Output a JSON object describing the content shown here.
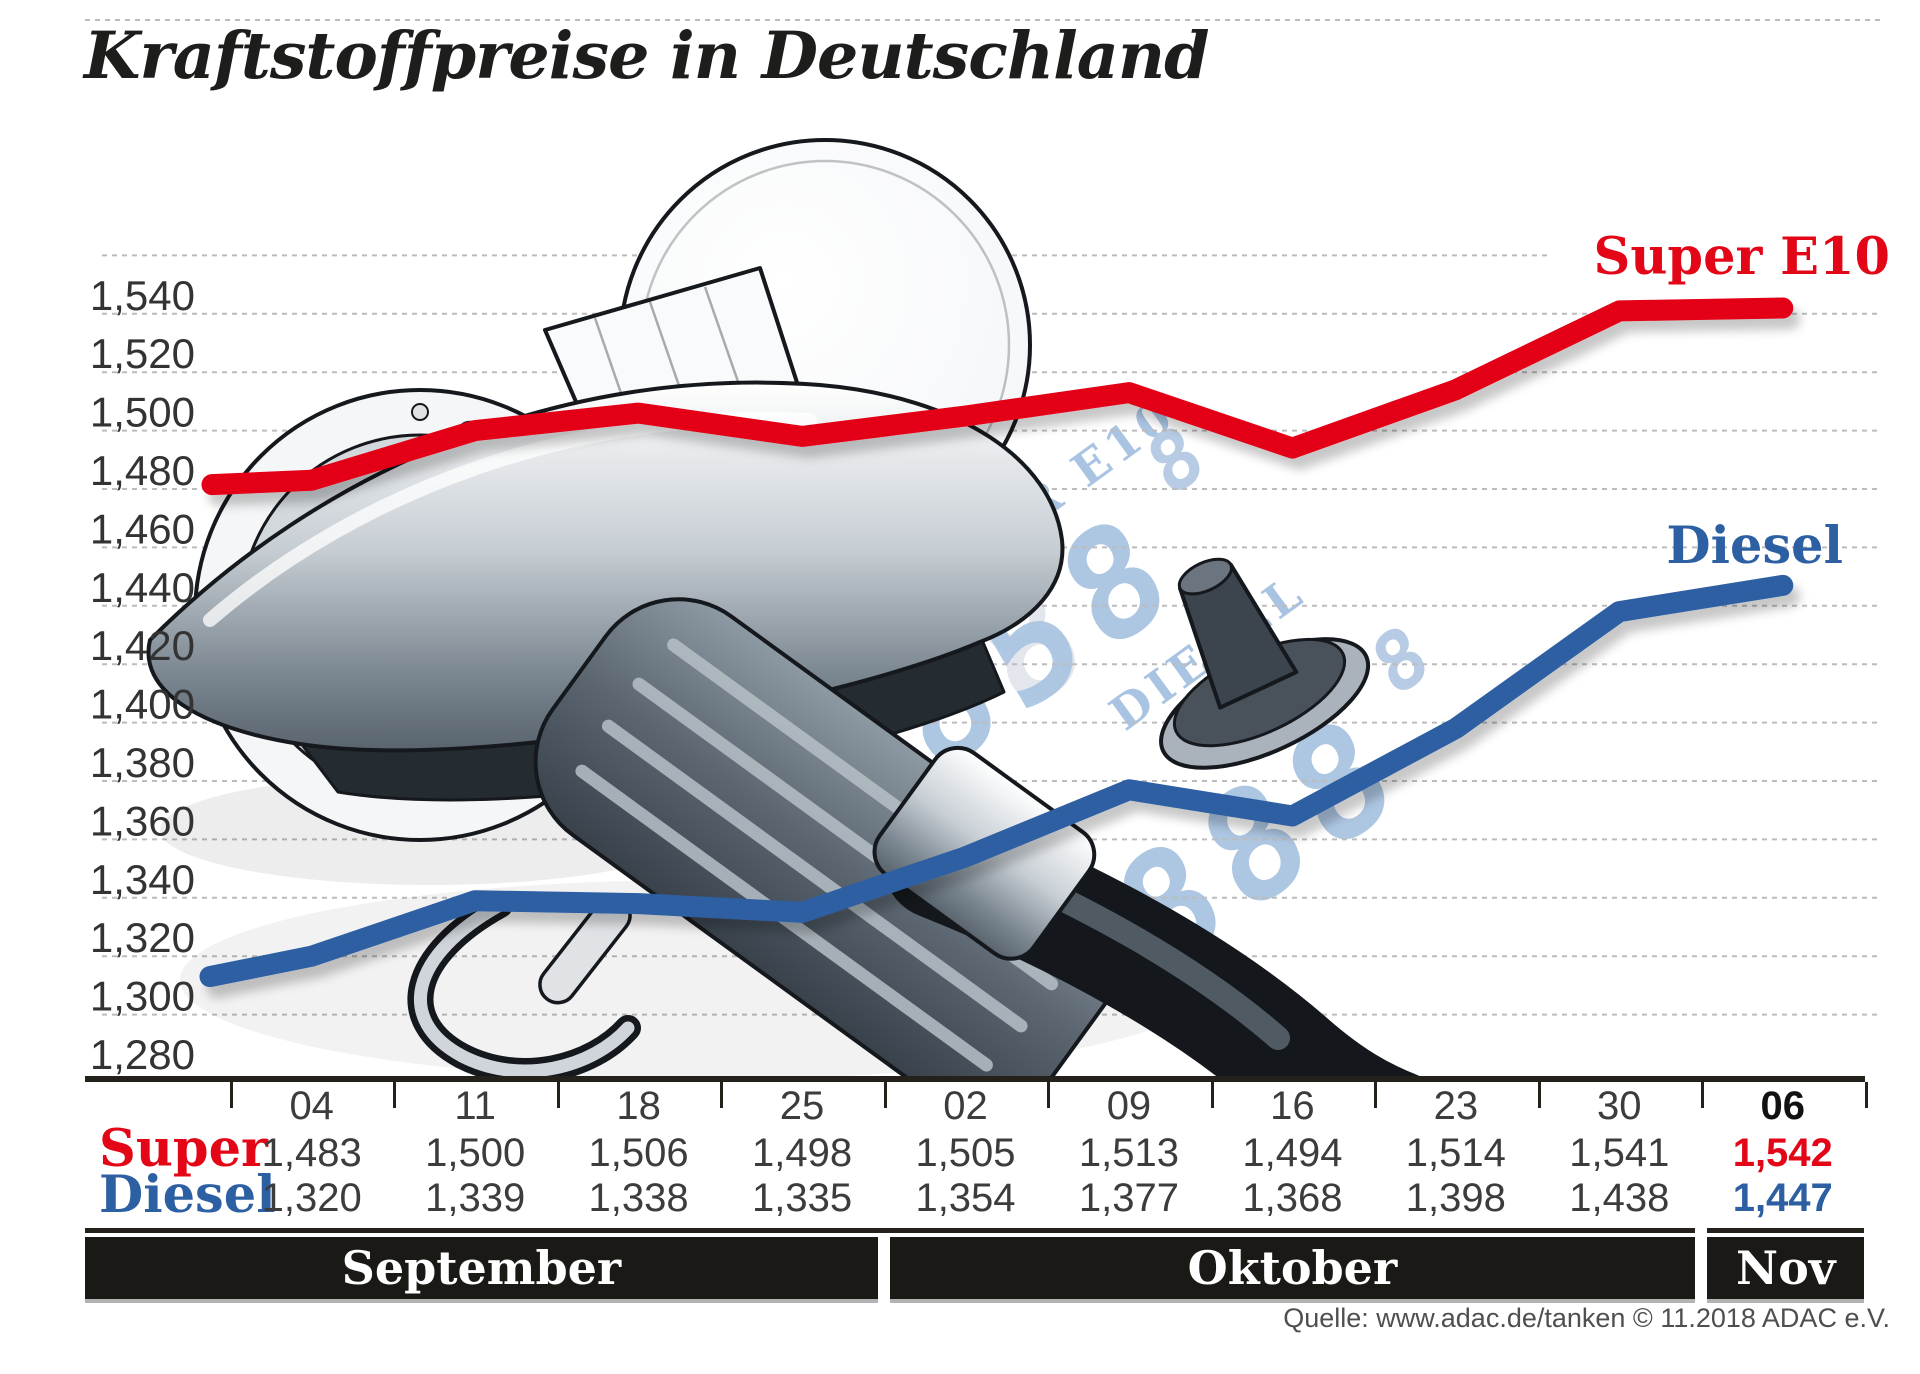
{
  "title": "Kraftstoffpreise in Deutschland",
  "legend": {
    "super": "Super E10",
    "diesel": "Diesel"
  },
  "source_note": "Quelle: www.adac.de/tanken   © 11.2018  ADAC e.V.",
  "colors": {
    "super_red": "#e30617",
    "diesel_blue": "#2d5fa3",
    "grid_gray": "#bcbcbc",
    "table_line": "#23211a",
    "band_black": "#1a1916",
    "value_text": "#3c3c3c",
    "seven_seg_blue": "#a9c4e2",
    "seven_seg_ghost": "#e3e7ed"
  },
  "pump_display": {
    "label_super": "SUPER E10",
    "label_diesel": "DIESEL",
    "digits_super_big": "858",
    "digits_super_small": "8",
    "digits_diesel_big": "888",
    "digits_diesel_small": "8"
  },
  "chart_data": {
    "type": "line",
    "x_labels": [
      "04",
      "11",
      "18",
      "25",
      "02",
      "09",
      "16",
      "23",
      "30",
      "06"
    ],
    "months": [
      {
        "label": "September",
        "from": 0,
        "to": 3
      },
      {
        "label": "Oktober",
        "from": 4,
        "to": 8
      },
      {
        "label": "Nov",
        "from": 9,
        "to": 9
      }
    ],
    "y_ticks": [
      1280,
      1300,
      1320,
      1340,
      1360,
      1380,
      1400,
      1420,
      1440,
      1460,
      1480,
      1500,
      1520,
      1540
    ],
    "y_grid_extra": 1560,
    "ylim": [
      1270,
      1565
    ],
    "grid": true,
    "legend_position": "right-on-lines",
    "series": [
      {
        "name": "Super E10",
        "color": "#e30617",
        "values": [
          1.483,
          1.5,
          1.506,
          1.498,
          1.505,
          1.513,
          1.494,
          1.514,
          1.541,
          1.542
        ],
        "left_edge_start": 1.4815
      },
      {
        "name": "Diesel",
        "color": "#2d5fa3",
        "values": [
          1.32,
          1.339,
          1.338,
          1.335,
          1.354,
          1.377,
          1.368,
          1.398,
          1.438,
          1.447
        ],
        "left_edge_start": 1.313
      }
    ]
  },
  "table": {
    "row_headers": [
      "Super",
      "Diesel"
    ],
    "dates": [
      "04",
      "11",
      "18",
      "25",
      "02",
      "09",
      "16",
      "23",
      "30",
      "06"
    ],
    "super_values": [
      "1,483",
      "1,500",
      "1,506",
      "1,498",
      "1,505",
      "1,513",
      "1,494",
      "1,514",
      "1,541",
      "1,542"
    ],
    "diesel_values": [
      "1,320",
      "1,339",
      "1,338",
      "1,335",
      "1,354",
      "1,377",
      "1,368",
      "1,398",
      "1,438",
      "1,447"
    ],
    "emphasized_column": 9
  }
}
